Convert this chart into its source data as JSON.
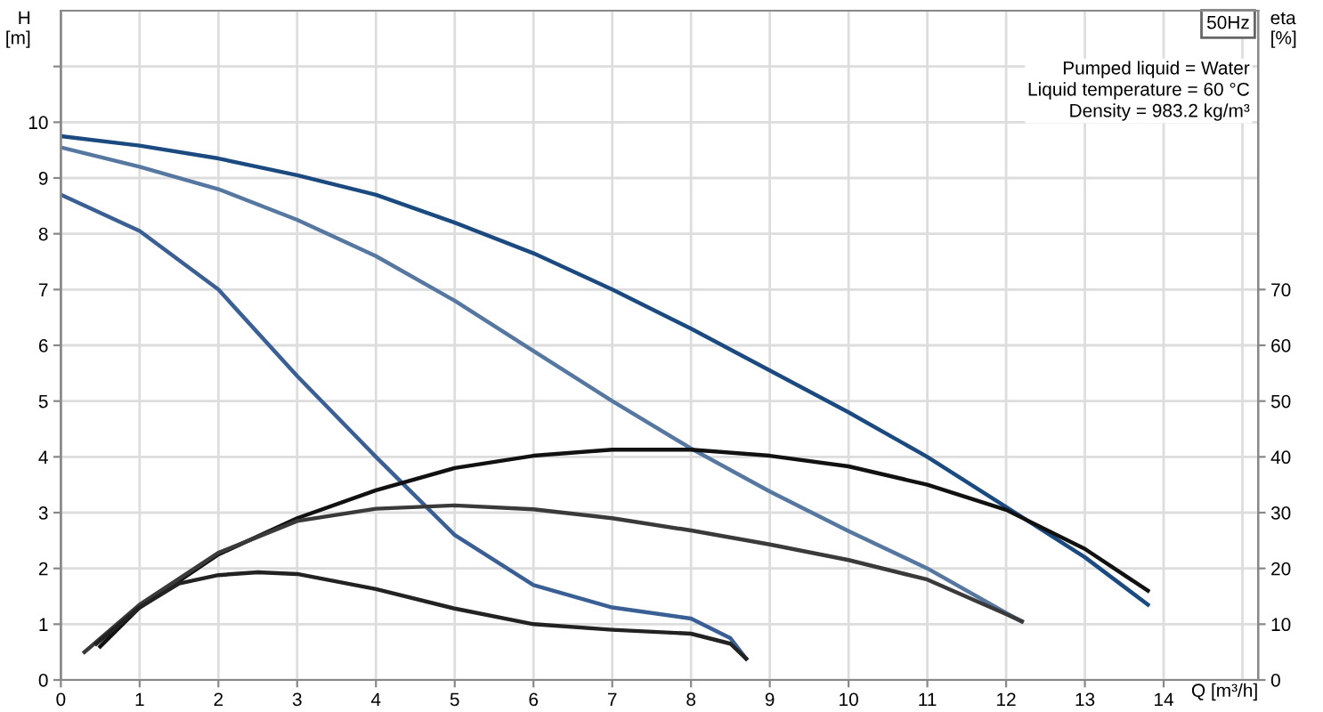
{
  "chart_data": {
    "type": "line",
    "xlabel": "Q [m³/h]",
    "ylabel": "H\n[m]",
    "y2label": "eta\n[%]",
    "xlim": [
      0,
      15.2
    ],
    "ylim": [
      0,
      12
    ],
    "y2lim": [
      0,
      120
    ],
    "xticks": [
      0,
      1,
      2,
      3,
      4,
      5,
      6,
      7,
      8,
      9,
      10,
      11,
      12,
      13,
      14,
      {
        "value": 15,
        "label": null
      }
    ],
    "yticks": [
      0,
      1,
      2,
      3,
      4,
      5,
      6,
      7,
      8,
      9,
      10,
      {
        "value": 11,
        "label": null
      }
    ],
    "y2ticks": [
      0,
      10,
      20,
      30,
      40,
      50,
      60,
      70
    ],
    "grid": true,
    "line_style": "solid",
    "marker": "none",
    "annotations": [
      "50Hz",
      "Pumped liquid = Water",
      "Liquid temperature = 60 °C",
      "Density = 983.2 kg/m³"
    ],
    "series": [
      {
        "color": "#1b4a80",
        "x": [
          0,
          1,
          2,
          3,
          4,
          5,
          6,
          7,
          8,
          9,
          10,
          11,
          12,
          13,
          13.8
        ],
        "values": [
          9.75,
          9.58,
          9.35,
          9.05,
          8.7,
          8.2,
          7.65,
          7.0,
          6.3,
          5.55,
          4.8,
          4.0,
          3.1,
          2.2,
          1.35
        ]
      },
      {
        "color": "#5577a0",
        "x": [
          0,
          1,
          2,
          3,
          4,
          5,
          6,
          7,
          8,
          9,
          10,
          11,
          12,
          12.2
        ],
        "values": [
          9.55,
          9.2,
          8.8,
          8.25,
          7.6,
          6.8,
          5.9,
          5.0,
          4.15,
          3.38,
          2.67,
          2.0,
          1.2,
          1.05
        ]
      },
      {
        "color": "#3a5f95",
        "x": [
          0,
          1,
          2,
          3,
          4,
          5,
          6,
          7,
          8,
          8.5,
          8.7
        ],
        "values": [
          8.7,
          8.05,
          7.0,
          5.45,
          4.0,
          2.6,
          1.7,
          1.3,
          1.1,
          0.75,
          0.38
        ]
      },
      {
        "color": "#111111",
        "axis": "y2",
        "x": [
          0.5,
          1,
          2,
          3,
          4,
          5,
          6,
          7,
          8,
          9,
          10,
          11,
          12,
          13,
          13.8
        ],
        "values": [
          6,
          13,
          22.5,
          29,
          34,
          38,
          40.2,
          41.3,
          41.3,
          40.2,
          38.3,
          35,
          30.5,
          23.5,
          16
        ]
      },
      {
        "color": "#3a3a3a",
        "axis": "y2",
        "x": [
          0.3,
          1,
          2,
          3,
          4,
          5,
          6,
          7,
          8,
          9,
          10,
          11,
          12,
          12.2
        ],
        "values": [
          5,
          13.5,
          22.8,
          28.5,
          30.7,
          31.3,
          30.6,
          29,
          26.8,
          24.3,
          21.5,
          18,
          11.8,
          10.5
        ]
      },
      {
        "color": "#222222",
        "axis": "y2",
        "x": [
          0.45,
          1,
          1.5,
          2,
          2.5,
          3,
          4,
          5,
          6,
          7,
          8,
          8.5,
          8.7
        ],
        "values": [
          6.5,
          13,
          17.3,
          18.8,
          19.3,
          19,
          16.3,
          12.8,
          10,
          9,
          8.3,
          6.5,
          3.8
        ]
      }
    ]
  }
}
